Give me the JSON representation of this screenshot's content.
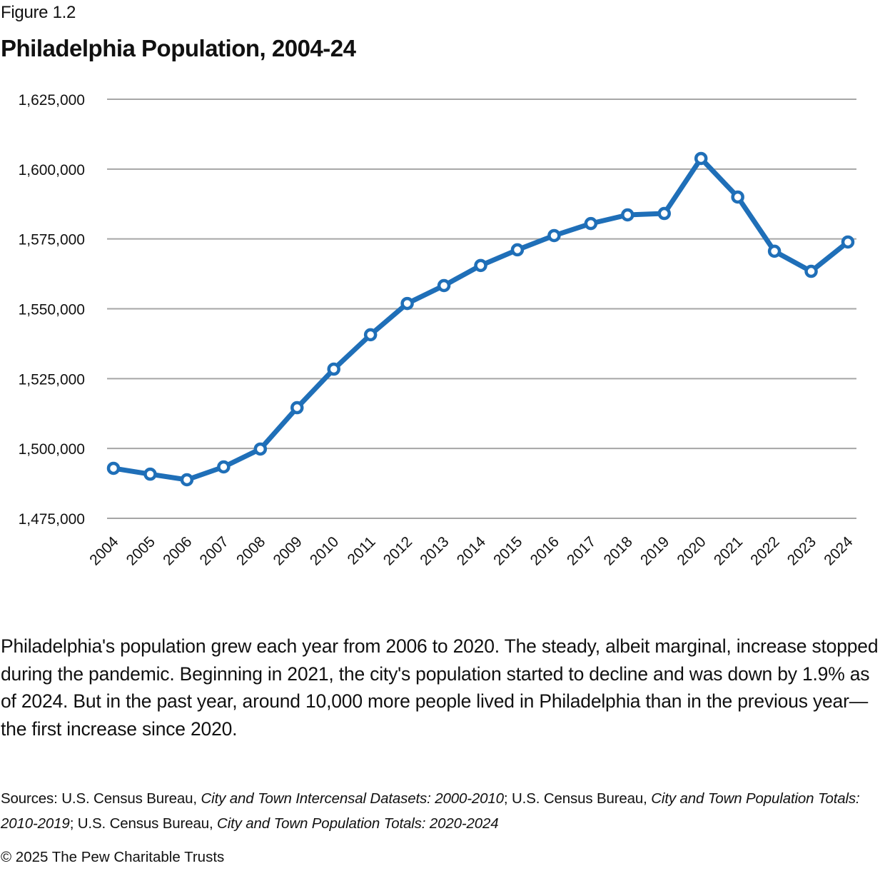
{
  "figure_label": "Figure 1.2",
  "title": "Philadelphia Population, 2004-24",
  "chart_data": {
    "type": "line",
    "title": "Philadelphia Population, 2004-24",
    "xlabel": "",
    "ylabel": "",
    "x": [
      "2004",
      "2005",
      "2006",
      "2007",
      "2008",
      "2009",
      "2010",
      "2011",
      "2012",
      "2013",
      "2014",
      "2015",
      "2016",
      "2017",
      "2018",
      "2019",
      "2020",
      "2021",
      "2022",
      "2023",
      "2024"
    ],
    "series": [
      {
        "name": "Population",
        "color": "#1f6fb8",
        "marker": "open-circle",
        "values": [
          1492900,
          1490800,
          1488800,
          1493400,
          1499800,
          1514600,
          1528400,
          1540700,
          1551900,
          1558300,
          1565500,
          1571100,
          1576200,
          1580500,
          1583600,
          1584100,
          1603800,
          1590000,
          1570600,
          1563400,
          1573900
        ]
      }
    ],
    "ylim": [
      1475000,
      1625000
    ],
    "yticks": [
      1475000,
      1500000,
      1525000,
      1550000,
      1575000,
      1600000,
      1625000
    ],
    "ytick_labels": [
      "1,475,000",
      "1,500,000",
      "1,525,000",
      "1,550,000",
      "1,575,000",
      "1,600,000",
      "1,625,000"
    ],
    "grid": "horizontal",
    "gridline_color": "#a6a6a6",
    "legend": "none"
  },
  "caption": "Philadelphia's population grew each year from 2006 to 2020. The steady, albeit marginal, increase stopped during the pandemic. Beginning in 2021, the city's population started to decline and was down by 1.9% as of 2024. But in the past year, around 10,000 more people lived in Philadelphia than in the previous year—the first increase since 2020.",
  "sources": {
    "prefix": "Sources: U.S. Census Bureau, ",
    "s1_title": "City and Town Intercensal Datasets: 2000-2010",
    "sep1": "; U.S. Census Bureau, ",
    "s2_title": "City and Town Population Totals: 2010-2019",
    "sep2": "; U.S. Census Bureau, ",
    "s3_title": "City and Town Population Totals: 2020-2024"
  },
  "copyright": "© 2025 The Pew Charitable Trusts"
}
